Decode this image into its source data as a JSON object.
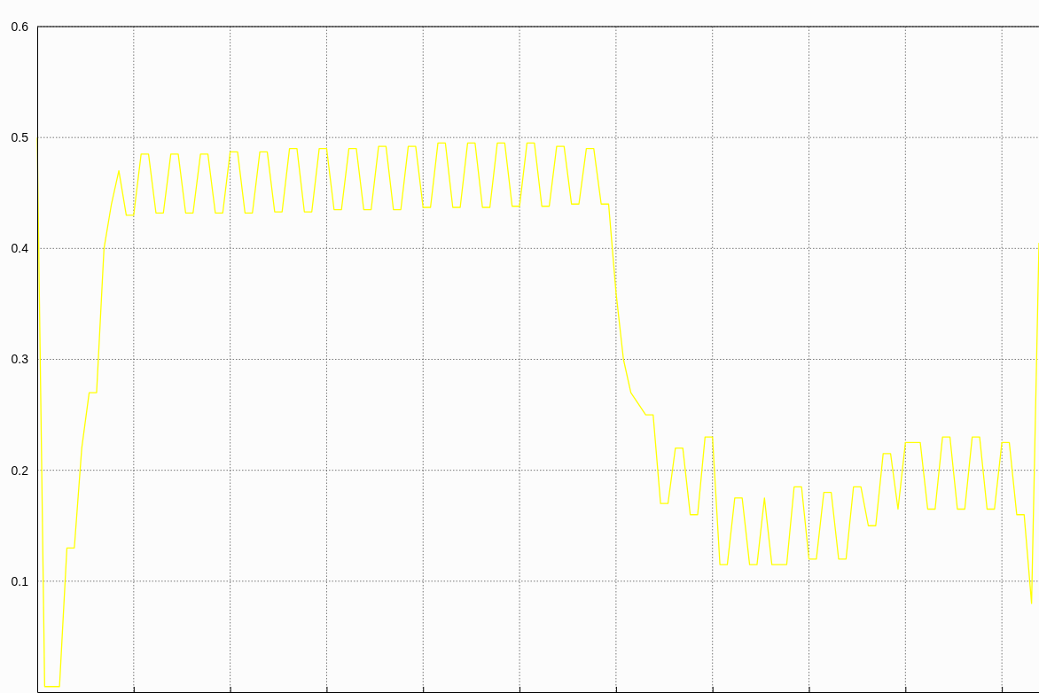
{
  "chart_data": {
    "type": "line",
    "categories": [
      null,
      null,
      null,
      null,
      null,
      null,
      null,
      null,
      null,
      null,
      null,
      null,
      null,
      null,
      null,
      null,
      null,
      null,
      null,
      null,
      null,
      null,
      null,
      null,
      null,
      null,
      null,
      null,
      null,
      null,
      null,
      null,
      null,
      null,
      null,
      null,
      null,
      null,
      null,
      null,
      null,
      null,
      null,
      null,
      null,
      null,
      null,
      null,
      null,
      null,
      null,
      null,
      null,
      null,
      null,
      null,
      null,
      null,
      null,
      null,
      null,
      null,
      null,
      null,
      null,
      null,
      null,
      null,
      null,
      null,
      null,
      null,
      null,
      null,
      null,
      null,
      null,
      null,
      null,
      null,
      null,
      null,
      null,
      null,
      null,
      null,
      null,
      null,
      null,
      null,
      null,
      null,
      null,
      null,
      null,
      null,
      null,
      null,
      null,
      null,
      null,
      null,
      null,
      null,
      null,
      null,
      null,
      null,
      null,
      null,
      null,
      null,
      null,
      null,
      null,
      null,
      null,
      null,
      null,
      null,
      null,
      null,
      null,
      null,
      null,
      null,
      null,
      null,
      null,
      null,
      null,
      null,
      null,
      null,
      null,
      null
    ],
    "series": [
      {
        "color": "#ffff00",
        "values": [
          0.5,
          0.005,
          0.005,
          0.005,
          0.13,
          0.13,
          0.22,
          0.27,
          0.27,
          0.4,
          0.44,
          0.47,
          0.43,
          0.43,
          0.485,
          0.485,
          0.432,
          0.432,
          0.485,
          0.485,
          0.432,
          0.432,
          0.485,
          0.485,
          0.432,
          0.432,
          0.487,
          0.487,
          0.432,
          0.432,
          0.487,
          0.487,
          0.433,
          0.433,
          0.49,
          0.49,
          0.433,
          0.433,
          0.49,
          0.49,
          0.435,
          0.435,
          0.49,
          0.49,
          0.435,
          0.435,
          0.492,
          0.492,
          0.435,
          0.435,
          0.492,
          0.492,
          0.437,
          0.437,
          0.495,
          0.495,
          0.437,
          0.437,
          0.495,
          0.495,
          0.437,
          0.437,
          0.495,
          0.495,
          0.438,
          0.438,
          0.495,
          0.495,
          0.438,
          0.438,
          0.492,
          0.492,
          0.44,
          0.44,
          0.49,
          0.49,
          0.44,
          0.44,
          0.36,
          0.3,
          0.27,
          0.26,
          0.25,
          0.25,
          0.17,
          0.17,
          0.22,
          0.22,
          0.16,
          0.16,
          0.23,
          0.23,
          0.115,
          0.115,
          0.175,
          0.175,
          0.115,
          0.115,
          0.175,
          0.115,
          0.115,
          0.115,
          0.185,
          0.185,
          0.12,
          0.12,
          0.18,
          0.18,
          0.12,
          0.12,
          0.185,
          0.185,
          0.15,
          0.15,
          0.215,
          0.215,
          0.165,
          0.225,
          0.225,
          0.225,
          0.165,
          0.165,
          0.23,
          0.23,
          0.165,
          0.165,
          0.23,
          0.23,
          0.165,
          0.165,
          0.225,
          0.225,
          0.16,
          0.16,
          0.08,
          0.405
        ]
      }
    ],
    "ylim": [
      0,
      0.6
    ],
    "yticks": [
      0.1,
      0.2,
      0.3,
      0.4,
      0.5,
      0.6
    ],
    "grid": true,
    "tick_labels": "y",
    "marker": "none",
    "line_style": "solid"
  }
}
